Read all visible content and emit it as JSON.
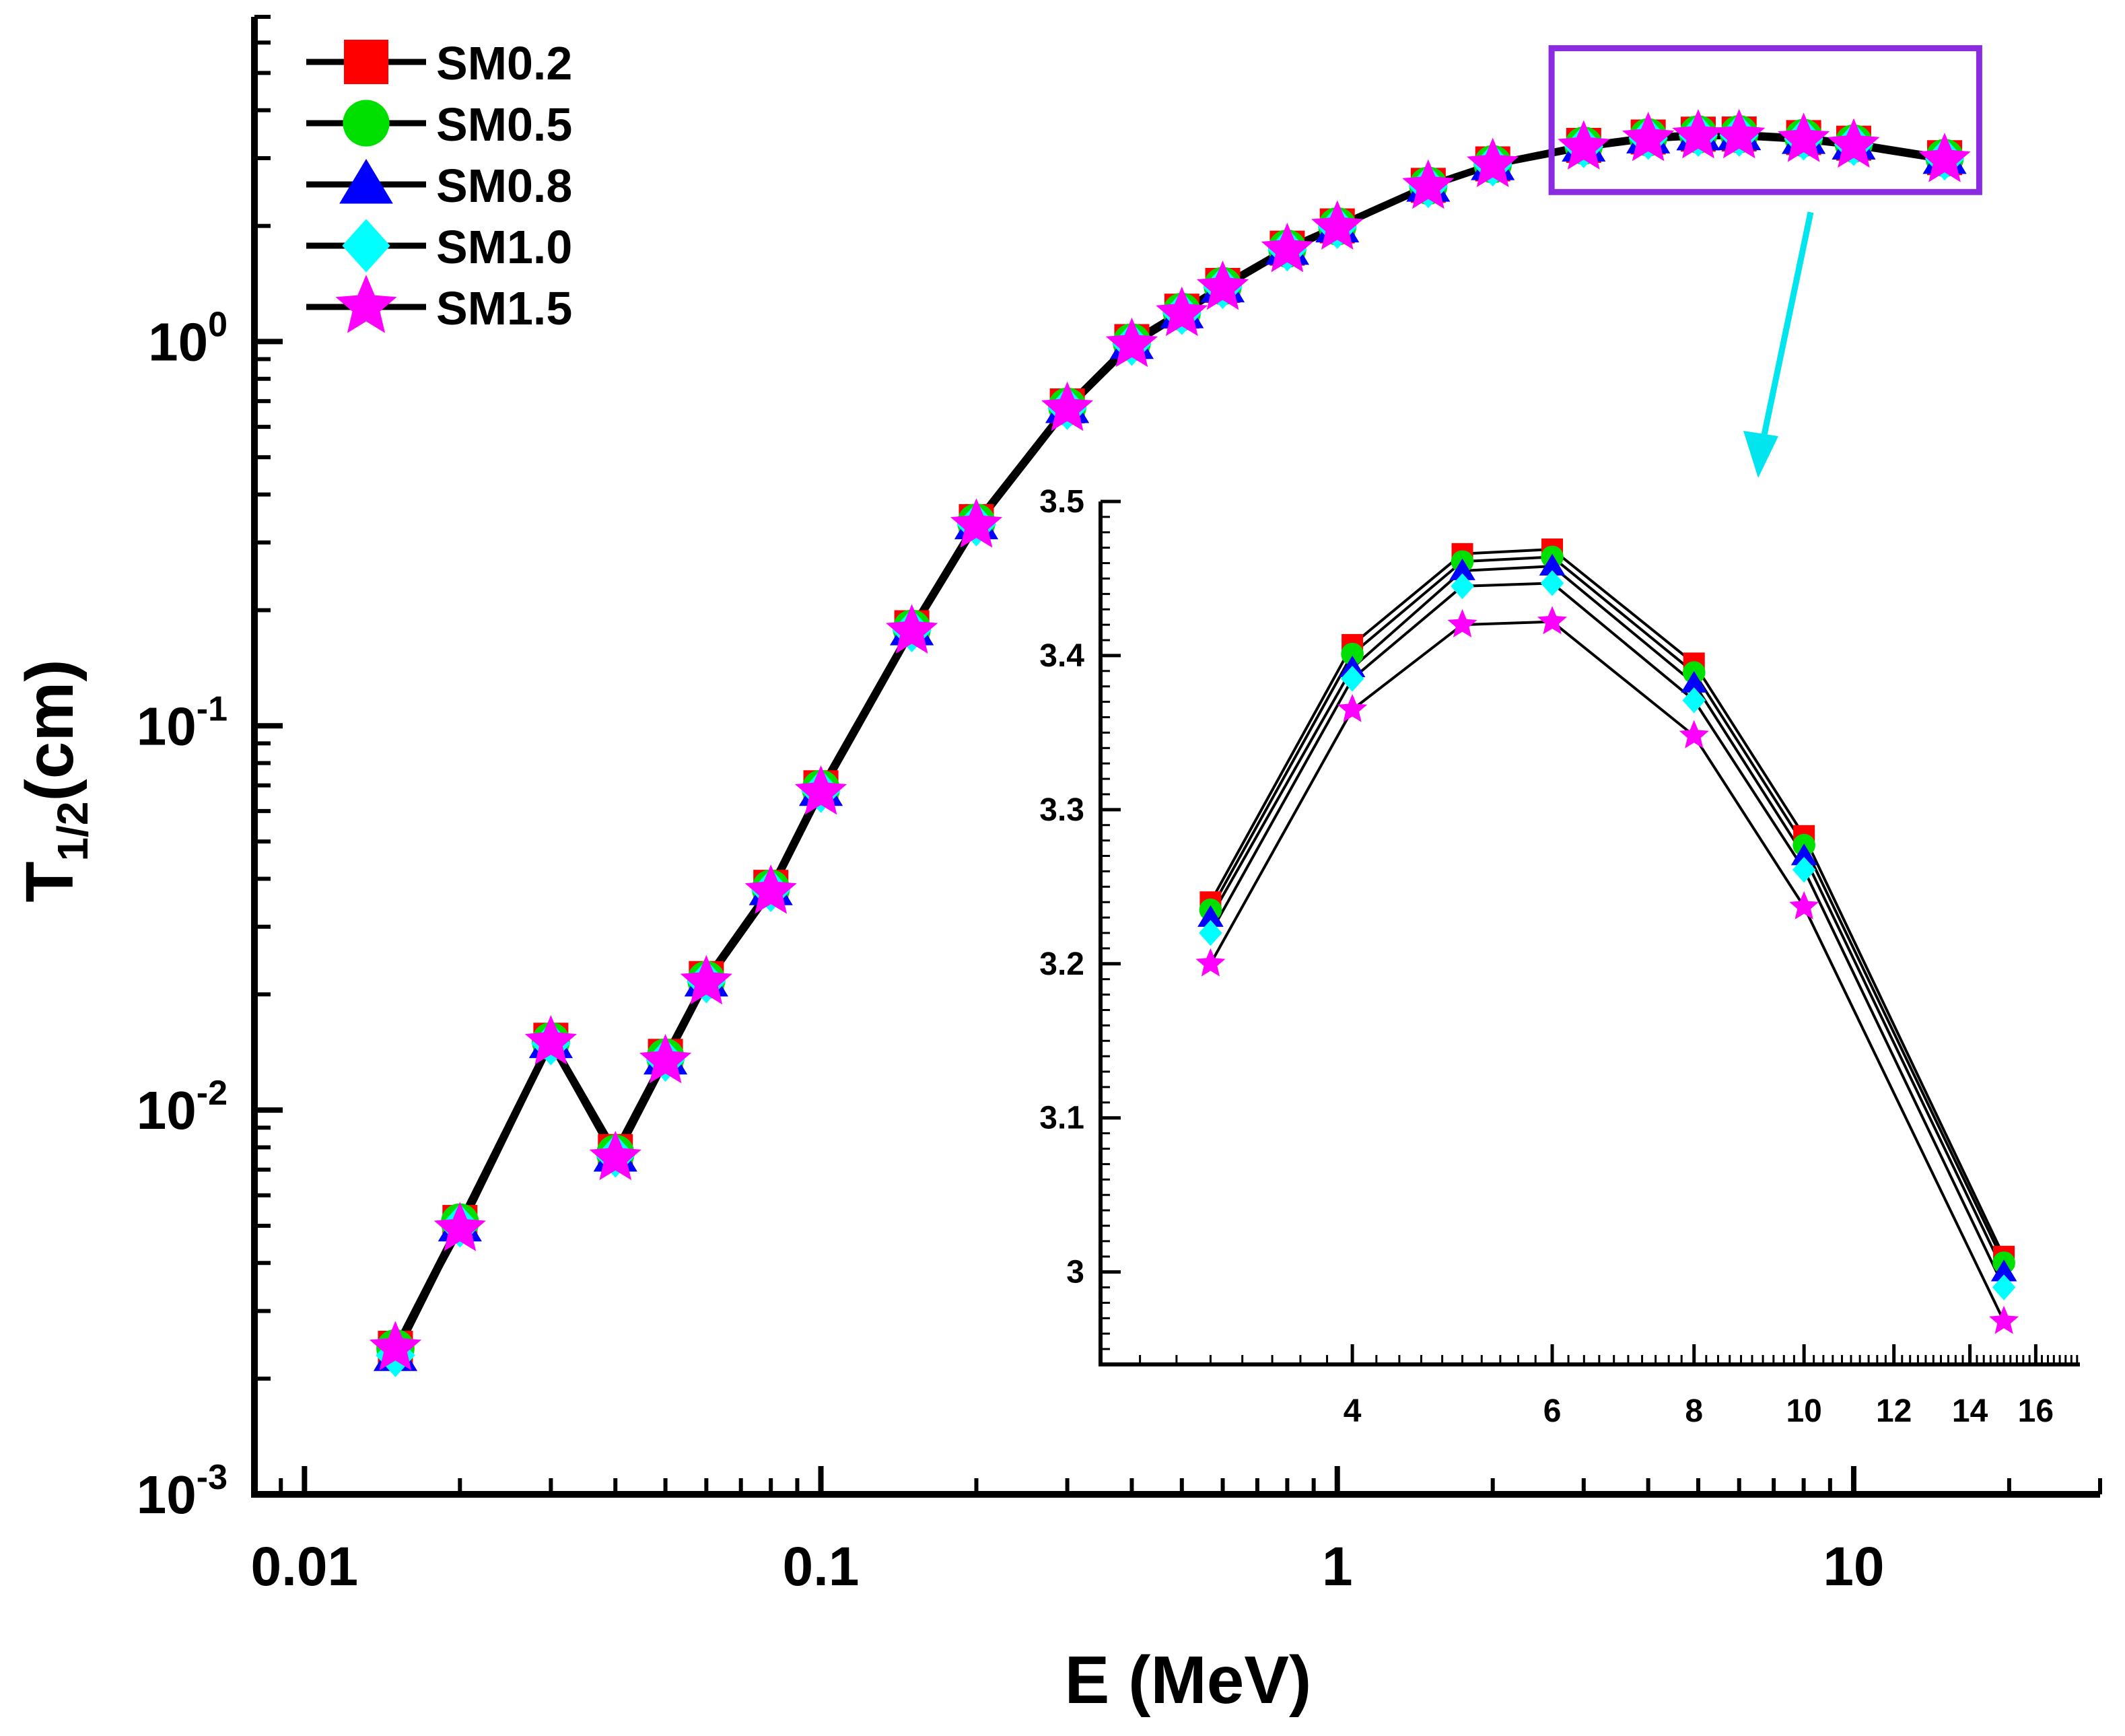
{
  "chart_data": [
    {
      "type": "line",
      "xlabel": "E (MeV)",
      "ylabel": "T",
      "ylabel_sub": "1/2",
      "ylabel_unit": "(cm)",
      "xscale": "log",
      "yscale": "log",
      "xlim": [
        0.008,
        30
      ],
      "ylim": [
        0.001,
        7
      ],
      "x_ticks": [
        {
          "value": 0.01,
          "label": "0.01"
        },
        {
          "value": 0.1,
          "label": "0.1"
        },
        {
          "value": 1,
          "label": "1"
        },
        {
          "value": 10,
          "label": "10"
        }
      ],
      "y_ticks": [
        {
          "value": 0.001,
          "base": "10",
          "exp": "-3"
        },
        {
          "value": 0.01,
          "base": "10",
          "exp": "-2"
        },
        {
          "value": 0.1,
          "base": "10",
          "exp": "-1"
        },
        {
          "value": 1,
          "base": "10",
          "exp": "0"
        }
      ],
      "legend_position": "top-left",
      "x": [
        0.015,
        0.02,
        0.03,
        0.04,
        0.05,
        0.06,
        0.08,
        0.1,
        0.15,
        0.2,
        0.3,
        0.4,
        0.5,
        0.6,
        0.8,
        1,
        1.5,
        2,
        3,
        4,
        5,
        6,
        8,
        10,
        15
      ],
      "series": [
        {
          "name": "SM0.2",
          "marker": "square",
          "color": "#ff0000",
          "values": [
            0.0024,
            0.0051,
            0.0152,
            0.0078,
            0.0138,
            0.022,
            0.038,
            0.069,
            0.18,
            0.34,
            0.68,
            1.0,
            1.2,
            1.4,
            1.75,
            2.0,
            2.55,
            2.9,
            3.24,
            3.407,
            3.466,
            3.469,
            3.395,
            3.283,
            3.01
          ]
        },
        {
          "name": "SM0.5",
          "marker": "circle",
          "color": "#00e000",
          "values": [
            0.0024,
            0.0051,
            0.0151,
            0.0077,
            0.0137,
            0.0218,
            0.0377,
            0.0685,
            0.179,
            0.338,
            0.677,
            0.995,
            1.195,
            1.395,
            1.745,
            1.995,
            2.545,
            2.895,
            3.235,
            3.401,
            3.461,
            3.464,
            3.389,
            3.277,
            3.006
          ]
        },
        {
          "name": "SM0.8",
          "marker": "triangle",
          "color": "#0000ff",
          "values": [
            0.0023,
            0.005,
            0.015,
            0.0076,
            0.0136,
            0.0217,
            0.0375,
            0.068,
            0.178,
            0.336,
            0.674,
            0.99,
            1.19,
            1.39,
            1.74,
            1.99,
            2.54,
            2.89,
            3.23,
            3.392,
            3.455,
            3.458,
            3.382,
            3.27,
            3.0
          ]
        },
        {
          "name": "SM1.0",
          "marker": "diamond",
          "color": "#00ffff",
          "values": [
            0.0023,
            0.005,
            0.0149,
            0.0076,
            0.0135,
            0.0216,
            0.0373,
            0.0676,
            0.177,
            0.334,
            0.671,
            0.985,
            1.185,
            1.385,
            1.735,
            1.985,
            2.535,
            2.885,
            3.22,
            3.385,
            3.445,
            3.447,
            3.371,
            3.261,
            2.99
          ]
        },
        {
          "name": "SM1.5",
          "marker": "star",
          "color": "#ff00ff",
          "values": [
            0.0024,
            0.0049,
            0.015,
            0.0075,
            0.0134,
            0.0215,
            0.037,
            0.067,
            0.176,
            0.332,
            0.668,
            0.98,
            1.18,
            1.38,
            1.73,
            1.98,
            2.53,
            2.88,
            3.2,
            3.365,
            3.42,
            3.422,
            3.348,
            3.237,
            2.968
          ]
        }
      ]
    },
    {
      "type": "line",
      "role": "inset",
      "xscale": "log",
      "xlim": [
        2.4,
        17.5
      ],
      "ylim": [
        2.94,
        3.5
      ],
      "x_ticks": [
        {
          "value": 4,
          "label": "4"
        },
        {
          "value": 6,
          "label": "6"
        },
        {
          "value": 8,
          "label": "8"
        },
        {
          "value": 10,
          "label": "10"
        },
        {
          "value": 12,
          "label": "12"
        },
        {
          "value": 14,
          "label": "14"
        },
        {
          "value": 16,
          "label": "16"
        }
      ],
      "y_ticks": [
        {
          "value": 3.0,
          "label": "3"
        },
        {
          "value": 3.1,
          "label": "3.1"
        },
        {
          "value": 3.2,
          "label": "3.2"
        },
        {
          "value": 3.3,
          "label": "3.3"
        },
        {
          "value": 3.4,
          "label": "3.4"
        },
        {
          "value": 3.5,
          "label": "3.5"
        }
      ],
      "x": [
        3,
        4,
        5,
        6,
        8,
        10,
        15
      ],
      "series": [
        {
          "name": "SM0.2",
          "marker": "square",
          "color": "#ff0000",
          "values": [
            3.24,
            3.407,
            3.466,
            3.469,
            3.395,
            3.283,
            3.01
          ]
        },
        {
          "name": "SM0.5",
          "marker": "circle",
          "color": "#00e000",
          "values": [
            3.235,
            3.401,
            3.461,
            3.464,
            3.389,
            3.277,
            3.006
          ]
        },
        {
          "name": "SM0.8",
          "marker": "triangle",
          "color": "#0000ff",
          "values": [
            3.23,
            3.392,
            3.455,
            3.458,
            3.382,
            3.27,
            3.0
          ]
        },
        {
          "name": "SM1.0",
          "marker": "diamond",
          "color": "#00ffff",
          "values": [
            3.22,
            3.385,
            3.445,
            3.447,
            3.371,
            3.261,
            2.99
          ]
        },
        {
          "name": "SM1.5",
          "marker": "star",
          "color": "#ff00ff",
          "values": [
            3.2,
            3.365,
            3.42,
            3.422,
            3.348,
            3.237,
            2.968
          ]
        }
      ]
    }
  ],
  "highlight_box": {
    "color": "#8a2be2",
    "x_range": [
      2.6,
      17.5
    ],
    "y_range": [
      2.45,
      5.8
    ]
  },
  "arrow_color": "#00e5ee"
}
